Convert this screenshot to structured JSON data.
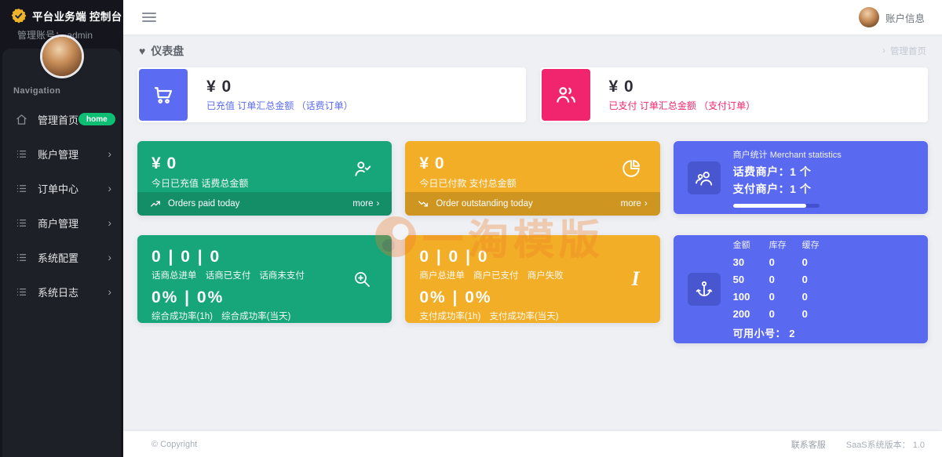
{
  "glyphs": {
    "heart": "♥",
    "chevron_right": "›"
  },
  "brand": {
    "title": "平台业务端 控制台",
    "subtitle": "管理账号： admin"
  },
  "topbar": {
    "account_label": "账户信息"
  },
  "sidebar": {
    "nav_label": "Navigation",
    "items": [
      {
        "label": "管理首页",
        "badge": "home"
      },
      {
        "label": "账户管理"
      },
      {
        "label": "订单中心"
      },
      {
        "label": "商户管理"
      },
      {
        "label": "系统配置"
      },
      {
        "label": "系统日志"
      }
    ]
  },
  "page": {
    "title": "仪表盘",
    "breadcrumb": "管理首页"
  },
  "summary_cards": [
    {
      "value": "¥ 0",
      "label": "已充值 订单汇总金额 （话费订单）"
    },
    {
      "value": "¥ 0",
      "label": "已支付 订单汇总金额 （支付订单）"
    }
  ],
  "stat_cards": {
    "recharge": {
      "value": "¥ 0",
      "label": "今日已充值 话费总金额",
      "footer_text": "Orders paid today",
      "more_label": "more"
    },
    "payment": {
      "value": "¥ 0",
      "label": "今日已付款 支付总金额",
      "footer_text": "Order outstanding today",
      "more_label": "more"
    },
    "merchant": {
      "title": "商户统计 Merchant statistics",
      "line1": "话费商户：1 个",
      "line2": "支付商户：1 个",
      "progress_percent": 85
    },
    "phone_stats": {
      "values": "0 | 0 | 0",
      "values_label": "话商总进单 话商已支付 话商未支付",
      "rates": "0% | 0%",
      "rates_label": "综合成功率(1h) 综合成功率(当天)"
    },
    "merchant_stats": {
      "values": "0 | 0 | 0",
      "values_label": "商户总进单 商户已支付 商户失败",
      "rates": "0% | 0%",
      "rates_label": "支付成功率(1h) 支付成功率(当天)"
    },
    "inventory": {
      "headers": [
        "金额",
        "库存",
        "缓存"
      ],
      "rows": [
        [
          "30",
          "0",
          "0"
        ],
        [
          "50",
          "0",
          "0"
        ],
        [
          "100",
          "0",
          "0"
        ],
        [
          "200",
          "0",
          "0"
        ]
      ],
      "footer": "可用小号： 2"
    }
  },
  "watermark": {
    "text": "一淘模版"
  },
  "footer": {
    "copyright": "© Copyright",
    "links": [
      "联系客服",
      "SaaS系统版本： 1.0"
    ]
  },
  "colors": {
    "accent_blue": "#5b6cf2",
    "accent_pink": "#f1256d",
    "green": "#17a679",
    "yellow": "#f2ae27",
    "card_blue": "#5a6af0",
    "badge_green": "#0ebe73"
  }
}
